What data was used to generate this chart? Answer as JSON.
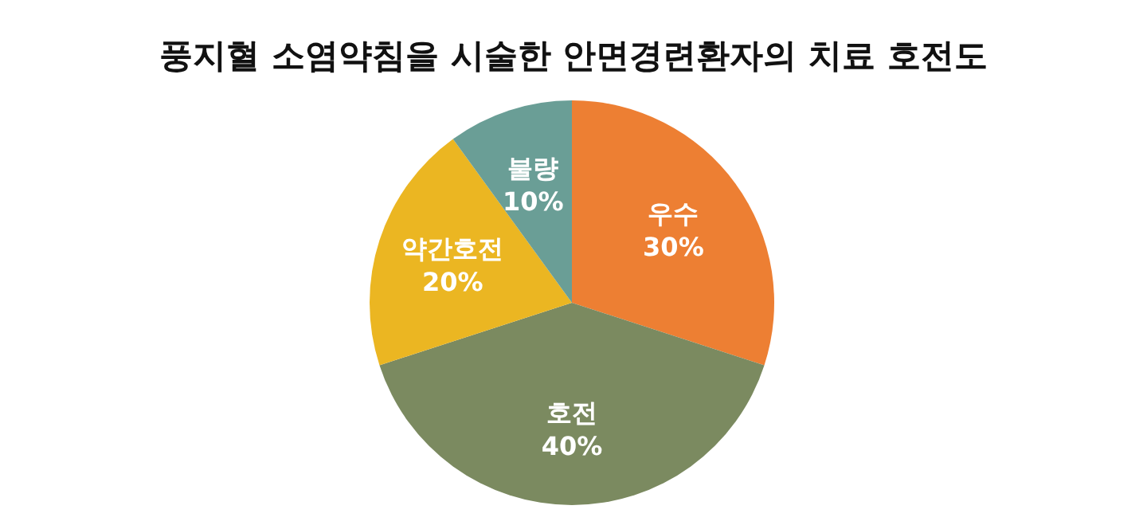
{
  "chart_data": {
    "type": "pie",
    "title": "풍지혈 소염약침을 시술한 안면경련환자의 치료 호전도",
    "categories": [
      "우수",
      "호전",
      "약간호전",
      "불량"
    ],
    "values": [
      30,
      40,
      20,
      10
    ],
    "value_labels": [
      "30%",
      "40%",
      "20%",
      "10%"
    ],
    "colors": [
      "#ed7f33",
      "#7b8a60",
      "#ebb622",
      "#6a9e96"
    ]
  }
}
